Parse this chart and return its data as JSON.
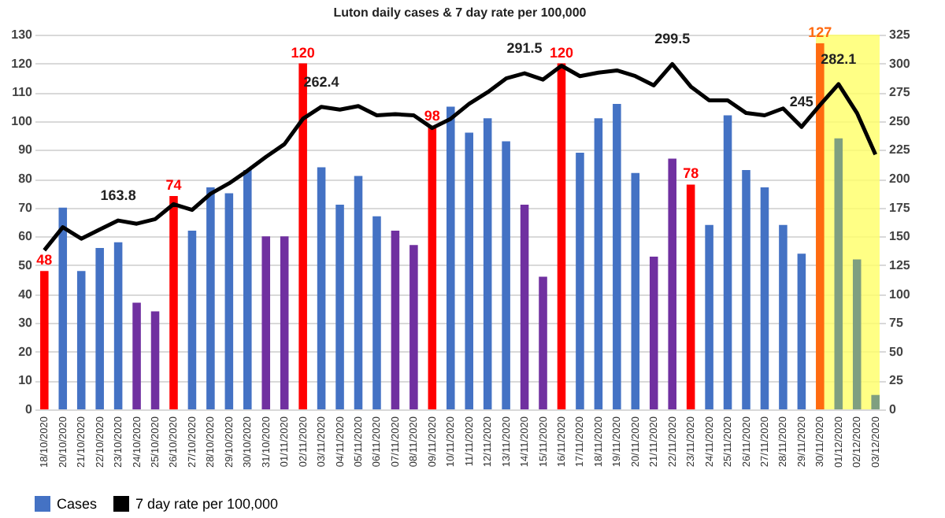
{
  "chart_data": {
    "type": "bar",
    "title": "Luton daily  cases & 7 day rate per 100,000",
    "categories": [
      "18/10/2020",
      "20/10/2020",
      "21/10/2020",
      "22/10/2020",
      "23/10/2020",
      "24/10/2020",
      "25/10/2020",
      "26/10/2020",
      "27/10/2020",
      "28/10/2020",
      "29/10/2020",
      "30/10/2020",
      "31/10/2020",
      "01/11/2020",
      "02/11/2020",
      "03/11/2020",
      "04/11/2020",
      "05/11/2020",
      "06/11/2020",
      "07/11/2020",
      "08/11/2020",
      "09/11/2020",
      "10/11/2020",
      "11/11/2020",
      "12/11/2020",
      "13/11/2020",
      "14/11/2020",
      "15/11/2020",
      "16/11/2020",
      "17/11/2020",
      "18/11/2020",
      "19/11/2020",
      "20/11/2020",
      "21/11/2020",
      "22/11/2020",
      "23/11/2020",
      "24/11/2020",
      "25/11/2020",
      "26/11/2020",
      "27/11/2020",
      "28/11/2020",
      "29/11/2020",
      "30/11/2020",
      "01/12/2020",
      "02/12/2020",
      "03/12/2020"
    ],
    "series": [
      {
        "name": "Cases",
        "color": "#4472c4",
        "values": [
          48,
          70,
          48,
          56,
          58,
          37,
          34,
          74,
          62,
          77,
          75,
          83,
          60,
          60,
          120,
          84,
          71,
          81,
          67,
          62,
          57,
          98,
          105,
          96,
          101,
          93,
          71,
          46,
          120,
          89,
          101,
          106,
          82,
          53,
          87,
          78,
          64,
          102,
          83,
          77,
          64,
          54,
          127,
          94,
          52,
          5
        ],
        "colors": [
          "#ff0000",
          "#4472c4",
          "#4472c4",
          "#4472c4",
          "#4472c4",
          "#7030a0",
          "#7030a0",
          "#ff0000",
          "#4472c4",
          "#4472c4",
          "#4472c4",
          "#4472c4",
          "#7030a0",
          "#7030a0",
          "#ff0000",
          "#4472c4",
          "#4472c4",
          "#4472c4",
          "#4472c4",
          "#7030a0",
          "#7030a0",
          "#ff0000",
          "#4472c4",
          "#4472c4",
          "#4472c4",
          "#4472c4",
          "#7030a0",
          "#7030a0",
          "#ff0000",
          "#4472c4",
          "#4472c4",
          "#4472c4",
          "#4472c4",
          "#7030a0",
          "#7030a0",
          "#ff0000",
          "#4472c4",
          "#4472c4",
          "#4472c4",
          "#4472c4",
          "#4472c4",
          "#4472c4",
          "#ff6a10",
          "#7f9f80",
          "#7f9f80",
          "#7f9f80"
        ],
        "value_labels": [
          "48",
          null,
          null,
          null,
          null,
          null,
          null,
          "74",
          null,
          null,
          null,
          null,
          null,
          null,
          "120",
          null,
          null,
          null,
          null,
          null,
          null,
          "98",
          null,
          null,
          null,
          null,
          null,
          null,
          "120",
          null,
          null,
          null,
          null,
          null,
          null,
          "78",
          null,
          null,
          null,
          null,
          null,
          null,
          "127",
          null,
          null,
          null
        ]
      },
      {
        "name": "7 day rate per 100,000",
        "type": "line",
        "axis": "y2",
        "color": "#000000",
        "values": [
          138,
          158,
          148,
          156,
          163.8,
          161,
          165,
          178,
          173,
          187,
          196,
          207,
          219,
          230,
          252,
          262.4,
          260,
          263,
          255,
          256,
          255,
          244,
          252,
          265,
          275,
          287,
          291.5,
          286,
          298,
          289,
          292,
          294,
          289,
          281,
          299.5,
          280,
          268,
          268,
          257,
          255,
          261,
          245,
          264,
          282.1,
          257,
          221
        ],
        "value_labels": [
          null,
          null,
          null,
          null,
          "163.8",
          null,
          null,
          null,
          null,
          null,
          null,
          null,
          null,
          null,
          null,
          "262.4",
          null,
          null,
          null,
          null,
          null,
          null,
          null,
          null,
          null,
          null,
          "291.5",
          null,
          null,
          null,
          null,
          null,
          null,
          null,
          "299.5",
          null,
          null,
          null,
          null,
          null,
          null,
          "245",
          null,
          "282.1",
          null,
          null
        ]
      }
    ],
    "ylim": [
      0,
      130
    ],
    "yticks": [
      0,
      10,
      20,
      30,
      40,
      50,
      60,
      70,
      80,
      90,
      100,
      110,
      120,
      130
    ],
    "y2lim": [
      0,
      325
    ],
    "y2ticks": [
      0,
      25,
      50,
      75,
      100,
      125,
      150,
      175,
      200,
      225,
      250,
      275,
      300,
      325
    ],
    "bands": [
      {
        "axis": "x",
        "from": "30/11/2020",
        "to": "03/12/2020",
        "color": "#ffff66"
      }
    ],
    "grid": "y",
    "legend": "bottom"
  }
}
